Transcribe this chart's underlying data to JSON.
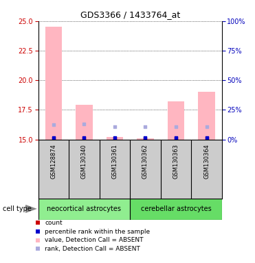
{
  "title": "GDS3366 / 1433764_at",
  "samples": [
    "GSM128874",
    "GSM130340",
    "GSM130361",
    "GSM130362",
    "GSM130363",
    "GSM130364"
  ],
  "groups": [
    {
      "label": "neocortical astrocytes",
      "indices": [
        0,
        1,
        2
      ],
      "color": "#90EE90"
    },
    {
      "label": "cerebellar astrocytes",
      "indices": [
        3,
        4,
        5
      ],
      "color": "#66DD66"
    }
  ],
  "ylim_left": [
    15,
    25
  ],
  "ylim_right": [
    0,
    100
  ],
  "yticks_left": [
    15,
    17.5,
    20,
    22.5,
    25
  ],
  "yticks_right": [
    0,
    25,
    50,
    75,
    100
  ],
  "pink_bar_values": [
    24.5,
    17.9,
    15.2,
    15.1,
    18.2,
    19.0
  ],
  "pink_bar_bottom": 15.0,
  "blue_sq_values": [
    16.25,
    16.3,
    16.05,
    16.05,
    16.05,
    16.1
  ],
  "red_sq_values": [
    15.08,
    15.08,
    15.08,
    15.08,
    15.08,
    15.08
  ],
  "pct_sq_values": [
    15.12,
    15.12,
    15.12,
    15.12,
    15.12,
    15.12
  ],
  "bar_width": 0.55,
  "left_tick_color": "#CC0000",
  "right_tick_color": "#0000BB",
  "plot_bg": "#FFFFFF",
  "sample_bg": "#CCCCCC",
  "legend_colors": [
    "#CC0000",
    "#0000CC",
    "#FFB6C1",
    "#AAAADD"
  ],
  "legend_labels": [
    "count",
    "percentile rank within the sample",
    "value, Detection Call = ABSENT",
    "rank, Detection Call = ABSENT"
  ]
}
